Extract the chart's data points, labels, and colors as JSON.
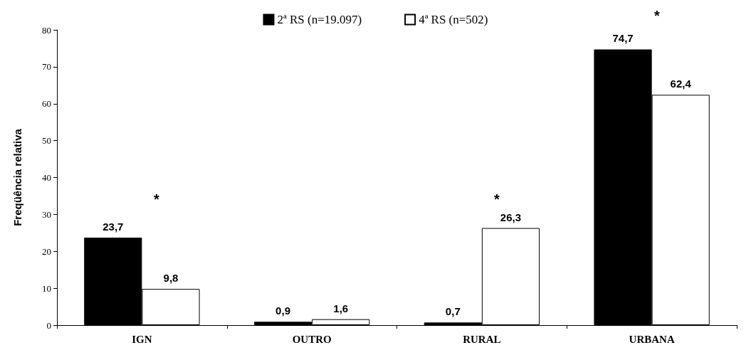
{
  "chart_data": {
    "type": "bar",
    "ylabel": "Freqüência relativa",
    "categories": [
      "IGN",
      "OUTRO",
      "RURAL",
      "URBANA"
    ],
    "series": [
      {
        "name": "2ª RS (n=19.097)",
        "color": "#000000",
        "values": [
          23.7,
          0.9,
          0.7,
          74.7
        ],
        "value_labels": [
          "23,7",
          "0,9",
          "0,7",
          "74,7"
        ]
      },
      {
        "name": "4ª RS (n=502)",
        "color": "#ffffff",
        "values": [
          9.8,
          1.6,
          26.3,
          62.4
        ],
        "value_labels": [
          "9,8",
          "1,6",
          "26,3",
          "62,4"
        ]
      }
    ],
    "annotations": [
      "*",
      "*",
      "*"
    ],
    "ylim": [
      0,
      80
    ],
    "yticks": [
      0,
      10,
      20,
      30,
      40,
      50,
      60,
      70,
      80
    ],
    "grid": false,
    "legend": "top"
  }
}
